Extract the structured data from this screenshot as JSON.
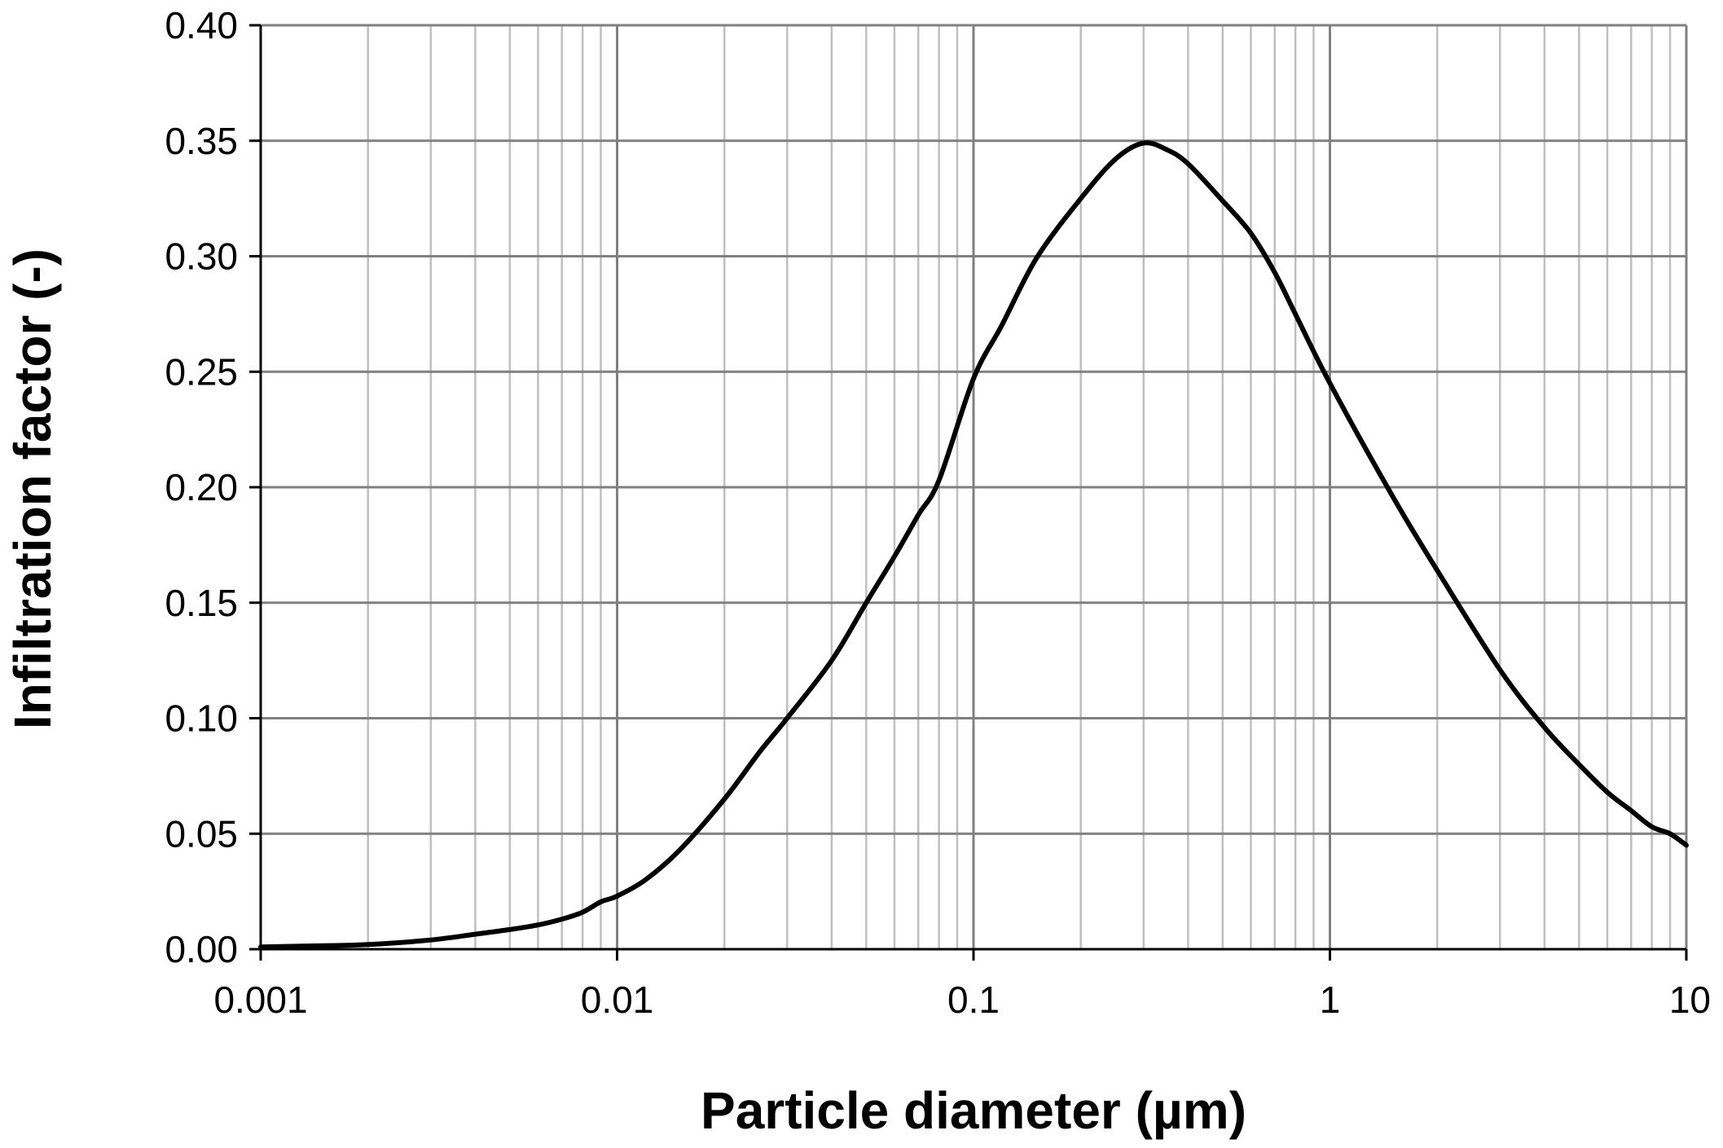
{
  "chart_data": {
    "type": "line",
    "title": "",
    "xlabel": "Particle diameter (µm)",
    "ylabel": "Infiltration factor (-)",
    "x_scale": "log",
    "xlim": [
      0.001,
      10
    ],
    "ylim": [
      0,
      0.4
    ],
    "x_ticks": [
      0.001,
      0.01,
      0.1,
      1,
      10
    ],
    "x_tick_labels": [
      "0.001",
      "0.01",
      "0.1",
      "1",
      "10"
    ],
    "y_ticks": [
      0,
      0.05,
      0.1,
      0.15,
      0.2,
      0.25,
      0.3,
      0.35,
      0.4
    ],
    "y_tick_labels": [
      "0.00",
      "0.05",
      "0.10",
      "0.15",
      "0.20",
      "0.25",
      "0.30",
      "0.35",
      "0.40"
    ],
    "grid": true,
    "minor_grid": true,
    "legend": "none",
    "colors": {
      "line": "#000000",
      "major_grid": "#808080",
      "minor_grid": "#bfbfbf",
      "axis": "#000000"
    },
    "series": [
      {
        "x": [
          0.001,
          0.0015,
          0.002,
          0.003,
          0.004,
          0.005,
          0.006,
          0.007,
          0.008,
          0.009,
          0.01,
          0.012,
          0.015,
          0.02,
          0.025,
          0.03,
          0.04,
          0.05,
          0.06,
          0.07,
          0.08,
          0.1,
          0.12,
          0.15,
          0.2,
          0.25,
          0.3,
          0.35,
          0.4,
          0.5,
          0.6,
          0.7,
          0.8,
          1,
          1.5,
          2,
          3,
          4,
          5,
          6,
          7,
          8,
          9,
          10
        ],
        "y": [
          0.001,
          0.0015,
          0.002,
          0.004,
          0.0065,
          0.0085,
          0.0105,
          0.013,
          0.016,
          0.0205,
          0.023,
          0.03,
          0.043,
          0.065,
          0.085,
          0.1,
          0.125,
          0.15,
          0.17,
          0.188,
          0.203,
          0.247,
          0.27,
          0.299,
          0.325,
          0.342,
          0.349,
          0.346,
          0.34,
          0.324,
          0.31,
          0.293,
          0.275,
          0.245,
          0.196,
          0.164,
          0.121,
          0.096,
          0.08,
          0.068,
          0.06,
          0.053,
          0.05,
          0.045
        ]
      }
    ]
  }
}
